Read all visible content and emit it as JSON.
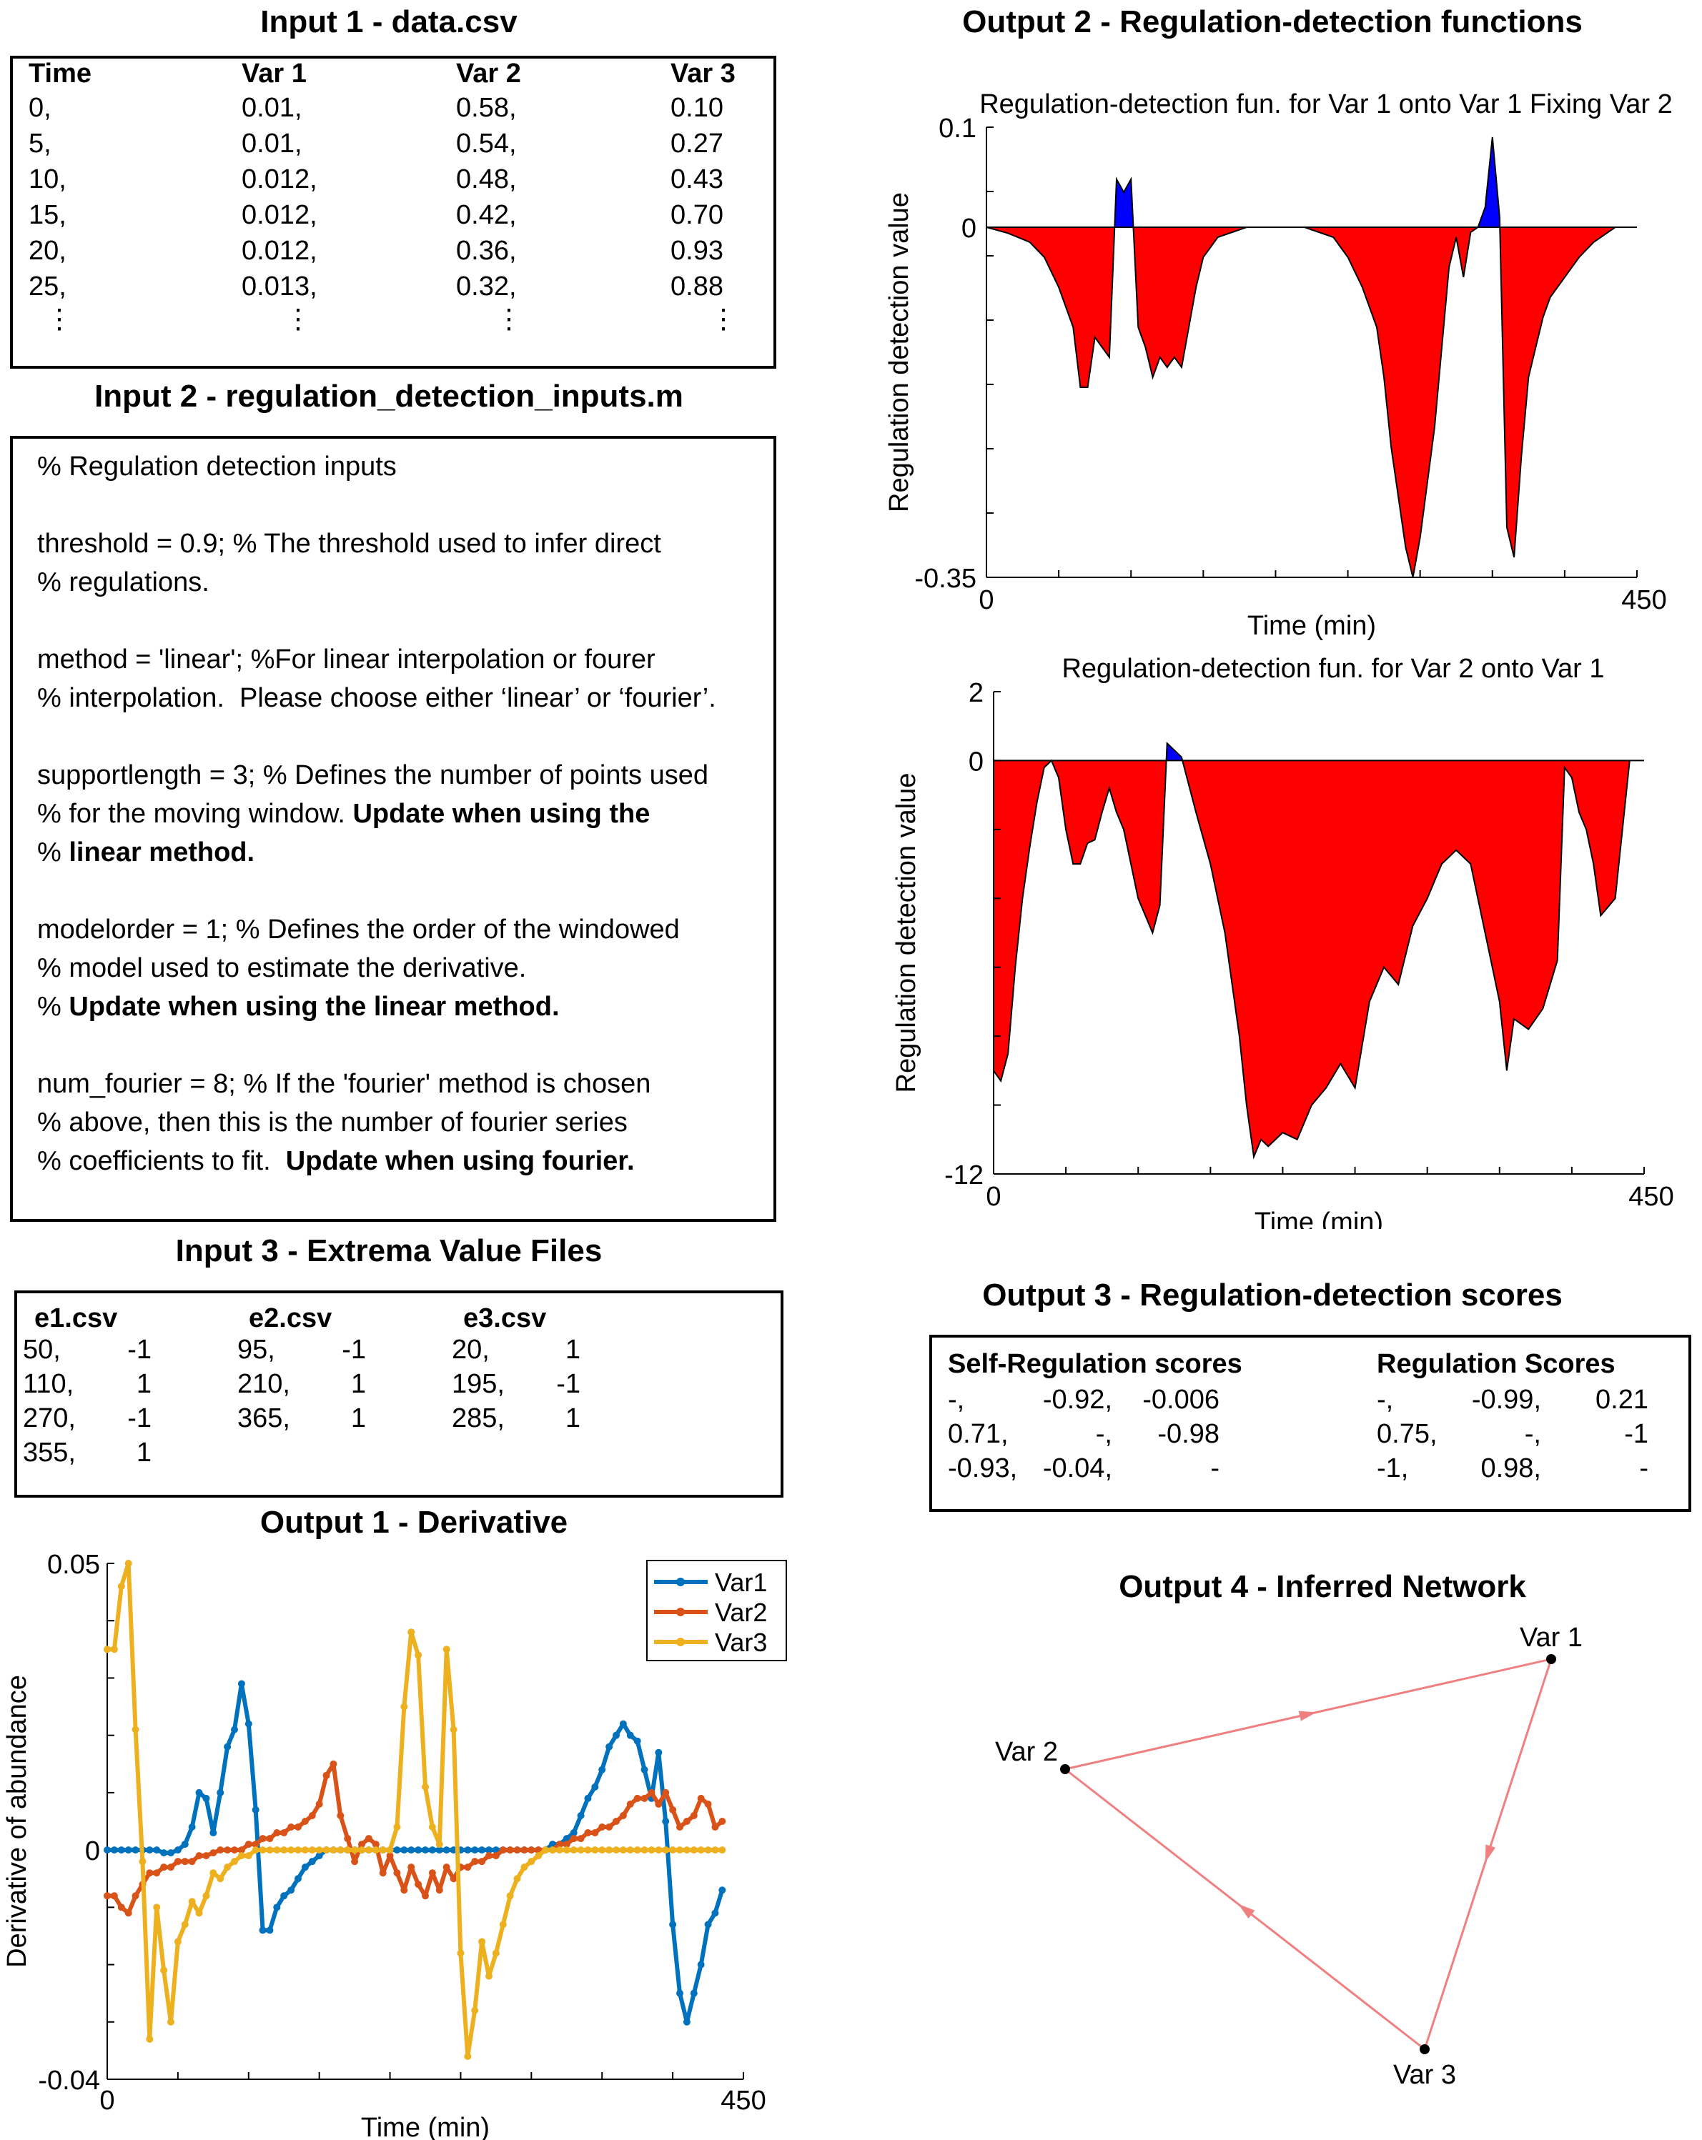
{
  "input1": {
    "title": "Input 1 - data.csv",
    "headers": [
      "Time",
      "Var 1",
      "Var 2",
      "Var 3"
    ],
    "rows": [
      [
        "0,",
        "0.01,",
        "0.58,",
        "0.10"
      ],
      [
        "5,",
        "0.01,",
        "0.54,",
        "0.27"
      ],
      [
        "10,",
        "0.012,",
        "0.48,",
        "0.43"
      ],
      [
        "15,",
        "0.012,",
        "0.42,",
        "0.70"
      ],
      [
        "20,",
        "0.012,",
        "0.36,",
        "0.93"
      ],
      [
        "25,",
        "0.013,",
        "0.32,",
        "0.88"
      ]
    ],
    "ellipsis": "⋮"
  },
  "input2": {
    "title": "Input 2 - regulation_detection_inputs.m",
    "l1": "% Regulation detection inputs",
    "l2": "threshold = 0.9; % The threshold used to infer direct",
    "l3": "% regulations.",
    "l4": "method = 'linear'; %For linear interpolation or fourer",
    "l5": "% interpolation.  Please choose either ‘linear’ or ‘fourier’.",
    "l6": "supportlength = 3; % Defines the number of points used",
    "l7a": "% for the moving window. ",
    "l7b": "Update when using the",
    "l8a": "% ",
    "l8b": "linear method.",
    "l9": "modelorder = 1; % Defines the order of the windowed",
    "l10": "% model used to estimate the derivative.",
    "l11a": "% ",
    "l11b": "Update when using the linear method.",
    "l12": "num_fourier = 8; % If the 'fourier' method is chosen",
    "l13": "% above, then this is the number of fourier series",
    "l14a": "% coefficients to fit.  ",
    "l14b": "Update when using fourier."
  },
  "input3": {
    "title": "Input 3 - Extrema Value Files",
    "files": [
      {
        "name": "e1.csv",
        "rows": [
          [
            "50,",
            "-1"
          ],
          [
            "110,",
            "1"
          ],
          [
            "270,",
            "-1"
          ],
          [
            "355,",
            "1"
          ]
        ]
      },
      {
        "name": "e2.csv",
        "rows": [
          [
            "95,",
            "-1"
          ],
          [
            "210,",
            "1"
          ],
          [
            "365,",
            "1"
          ]
        ]
      },
      {
        "name": "e3.csv",
        "rows": [
          [
            "20,",
            "1"
          ],
          [
            "195,",
            "-1"
          ],
          [
            "285,",
            "1"
          ]
        ]
      }
    ]
  },
  "output1": {
    "title": "Output 1 - Derivative",
    "chart_data": {
      "type": "line",
      "xlabel": "Time (min)",
      "ylabel": "Derivative of abundance",
      "xlim": [
        0,
        450
      ],
      "ylim": [
        -0.04,
        0.05
      ],
      "xticklabels": [
        "0",
        "450"
      ],
      "yticklabels": [
        "0.05",
        "0",
        "-0.04"
      ],
      "legend_position": "top-right",
      "x": [
        0,
        5,
        10,
        15,
        20,
        25,
        30,
        35,
        40,
        45,
        50,
        55,
        60,
        65,
        70,
        75,
        80,
        85,
        90,
        95,
        100,
        105,
        110,
        115,
        120,
        125,
        130,
        135,
        140,
        145,
        150,
        155,
        160,
        165,
        170,
        175,
        180,
        185,
        190,
        195,
        200,
        205,
        210,
        215,
        220,
        225,
        230,
        235,
        240,
        245,
        250,
        255,
        260,
        265,
        270,
        275,
        280,
        285,
        290,
        295,
        300,
        305,
        310,
        315,
        320,
        325,
        330,
        335,
        340,
        345,
        350,
        355,
        360,
        365,
        370,
        375,
        380,
        385,
        390,
        395,
        400,
        405,
        410,
        415,
        420,
        425,
        430,
        435
      ],
      "series": [
        {
          "name": "Var1",
          "color": "#0072BD",
          "values": [
            0,
            0,
            0,
            0,
            0,
            0,
            0,
            0,
            -0.0005,
            -0.0005,
            0,
            0.001,
            0.004,
            0.01,
            0.009,
            0.003,
            0.01,
            0.018,
            0.021,
            0.029,
            0.022,
            0.007,
            -0.014,
            -0.014,
            -0.01,
            -0.008,
            -0.007,
            -0.005,
            -0.003,
            -0.002,
            -0.001,
            0,
            0,
            0,
            0,
            0,
            0,
            0,
            0,
            0,
            0,
            0,
            0,
            0,
            0,
            0,
            0,
            0,
            0,
            0,
            0,
            0,
            0,
            0,
            0,
            0,
            0,
            0,
            0,
            0,
            0,
            0,
            0,
            0.001,
            0.001,
            0.002,
            0.003,
            0.006,
            0.009,
            0.011,
            0.014,
            0.018,
            0.02,
            0.022,
            0.02,
            0.019,
            0.014,
            0.009,
            0.017,
            0.005,
            -0.013,
            -0.025,
            -0.03,
            -0.025,
            -0.02,
            -0.013,
            -0.011,
            -0.007
          ]
        },
        {
          "name": "Var2",
          "color": "#D95319",
          "values": [
            -0.008,
            -0.008,
            -0.01,
            -0.011,
            -0.008,
            -0.006,
            -0.004,
            -0.004,
            -0.003,
            -0.003,
            -0.002,
            -0.002,
            -0.002,
            -0.001,
            -0.001,
            -0.0005,
            0,
            0,
            0,
            0,
            0.001,
            0.001,
            0.002,
            0.002,
            0.003,
            0.003,
            0.004,
            0.004,
            0.005,
            0.006,
            0.008,
            0.013,
            0.015,
            0.006,
            0.002,
            -0.002,
            0.001,
            0.002,
            0.001,
            -0.004,
            -0.001,
            -0.004,
            -0.007,
            -0.003,
            -0.006,
            -0.008,
            -0.004,
            -0.007,
            -0.003,
            -0.005,
            -0.003,
            -0.003,
            -0.002,
            -0.002,
            -0.001,
            -0.001,
            0,
            0,
            0,
            0,
            0,
            0,
            0,
            0,
            0.001,
            0.001,
            0.002,
            0.002,
            0.003,
            0.003,
            0.004,
            0.004,
            0.005,
            0.006,
            0.008,
            0.009,
            0.009,
            0.01,
            0.008,
            0.01,
            0.007,
            0.004,
            0.005,
            0.006,
            0.009,
            0.008,
            0.004,
            0.005
          ]
        },
        {
          "name": "Var3",
          "color": "#EDB120",
          "values": [
            0.035,
            0.035,
            0.046,
            0.05,
            0.021,
            -0.002,
            -0.033,
            -0.01,
            -0.021,
            -0.03,
            -0.016,
            -0.013,
            -0.009,
            -0.011,
            -0.008,
            -0.004,
            -0.005,
            -0.003,
            -0.002,
            -0.001,
            -0.001,
            0,
            0,
            0,
            0,
            0,
            0,
            0,
            0,
            0,
            0,
            0,
            0,
            0,
            0,
            0,
            0,
            0,
            0,
            0,
            0,
            0.004,
            0.025,
            0.038,
            0.034,
            0.011,
            0.004,
            0.001,
            0.035,
            0.021,
            -0.018,
            -0.036,
            -0.028,
            -0.016,
            -0.022,
            -0.018,
            -0.013,
            -0.008,
            -0.005,
            -0.003,
            -0.002,
            -0.001,
            0,
            0,
            0,
            0,
            0,
            0,
            0,
            0,
            0,
            0,
            0,
            0,
            0,
            0,
            0,
            0,
            0,
            0,
            0,
            0,
            0,
            0,
            0,
            0,
            0,
            0
          ]
        }
      ]
    }
  },
  "output2": {
    "title": "Output 2 - Regulation-detection functions",
    "charts": [
      {
        "type": "area",
        "title": "Regulation-detection fun. for Var 1 onto Var 1 Fixing Var 2",
        "xlabel": "Time (min)",
        "ylabel": "Regulation detection value",
        "xlim": [
          0,
          450
        ],
        "ylim": [
          -0.35,
          0.1
        ],
        "xticklabels": [
          "0",
          "450"
        ],
        "yticklabels": [
          "0.1",
          "0",
          "-0.35"
        ],
        "positive_color": "#0000FF",
        "negative_color": "#FF0000",
        "x": [
          0,
          15,
          30,
          40,
          50,
          60,
          65,
          70,
          75,
          80,
          85,
          90,
          95,
          100,
          105,
          110,
          115,
          120,
          125,
          130,
          135,
          140,
          145,
          150,
          160,
          180,
          200,
          220,
          240,
          250,
          260,
          270,
          275,
          280,
          290,
          295,
          300,
          310,
          320,
          325,
          330,
          335,
          340,
          345,
          350,
          355,
          360,
          365,
          370,
          375,
          380,
          385,
          390,
          395,
          400,
          405,
          410,
          420,
          435,
          440
        ],
        "values": [
          0,
          -0.006,
          -0.015,
          -0.03,
          -0.06,
          -0.1,
          -0.16,
          -0.16,
          -0.11,
          -0.12,
          -0.13,
          0.048,
          0.035,
          0.048,
          -0.1,
          -0.12,
          -0.15,
          -0.13,
          -0.14,
          -0.13,
          -0.14,
          -0.1,
          -0.06,
          -0.03,
          -0.01,
          0,
          0,
          0,
          -0.01,
          -0.03,
          -0.06,
          -0.1,
          -0.15,
          -0.22,
          -0.32,
          -0.35,
          -0.31,
          -0.2,
          -0.04,
          -0.01,
          -0.05,
          -0.005,
          0,
          0.02,
          0.09,
          0.01,
          -0.3,
          -0.33,
          -0.23,
          -0.15,
          -0.12,
          -0.09,
          -0.07,
          -0.06,
          -0.05,
          -0.04,
          -0.03,
          -0.015,
          0,
          0
        ]
      },
      {
        "type": "area",
        "title": "Regulation-detection fun. for Var 2 onto Var 1",
        "xlabel": "Time (min)",
        "ylabel": "Regulation detection value",
        "xlim": [
          0,
          450
        ],
        "ylim": [
          -12,
          2
        ],
        "xticklabels": [
          "0",
          "450"
        ],
        "yticklabels": [
          "2",
          "0",
          "-12"
        ],
        "positive_color": "#0000FF",
        "negative_color": "#FF0000",
        "x": [
          0,
          5,
          10,
          15,
          20,
          25,
          30,
          35,
          40,
          45,
          50,
          55,
          60,
          65,
          70,
          75,
          80,
          85,
          90,
          95,
          100,
          105,
          110,
          115,
          120,
          130,
          140,
          150,
          160,
          170,
          175,
          180,
          185,
          190,
          200,
          210,
          220,
          230,
          240,
          250,
          260,
          270,
          280,
          290,
          300,
          310,
          320,
          330,
          340,
          350,
          355,
          360,
          370,
          380,
          390,
          395,
          400,
          405,
          410,
          415,
          420,
          430,
          440
        ],
        "values": [
          -9,
          -9.3,
          -8.5,
          -6,
          -4,
          -2.5,
          -1.2,
          -0.2,
          0,
          -0.5,
          -2,
          -3,
          -3,
          -2.4,
          -2.3,
          -1.5,
          -0.8,
          -1.5,
          -2,
          -3,
          -4,
          -4.5,
          -5,
          -4.2,
          0.5,
          0.1,
          -1.5,
          -3,
          -5,
          -8,
          -10,
          -11.5,
          -11,
          -11.2,
          -10.8,
          -11,
          -10,
          -9.5,
          -8.8,
          -9.5,
          -7,
          -6,
          -6.5,
          -4.8,
          -4,
          -3,
          -2.6,
          -3,
          -5,
          -7,
          -9,
          -7.5,
          -7.8,
          -7.2,
          -5.8,
          -0.2,
          -0.5,
          -1.5,
          -2,
          -3,
          -4.5,
          -4,
          0
        ]
      }
    ]
  },
  "output3": {
    "title": "Output 3 - Regulation-detection scores",
    "self_title": "Self-Regulation scores",
    "reg_title": "Regulation Scores",
    "self_rows": [
      [
        "-,",
        "-0.92,",
        "-0.006"
      ],
      [
        "0.71,",
        "-,",
        "-0.98"
      ],
      [
        "-0.93,",
        "-0.04,",
        "-"
      ]
    ],
    "reg_rows": [
      [
        "-,",
        "-0.99,",
        "0.21"
      ],
      [
        "0.75,",
        "-,",
        "-1"
      ],
      [
        "-1,",
        "0.98,",
        "-"
      ]
    ]
  },
  "output4": {
    "title": "Output 4 - Inferred Network",
    "nodes": [
      "Var 1",
      "Var 2",
      "Var 3"
    ],
    "edge_color": "#F08080"
  }
}
